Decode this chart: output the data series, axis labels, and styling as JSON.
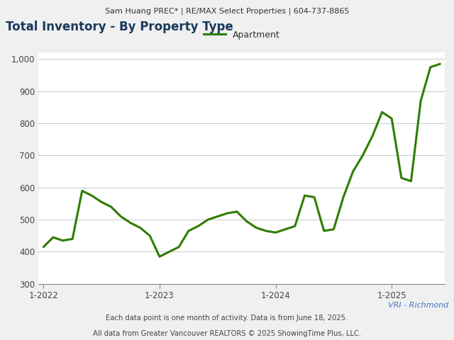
{
  "title": "Total Inventory - By Property Type",
  "header": "Sam Huang PREC* | RE/MAX Select Properties | 604-737-8865",
  "legend_label": "Apartment",
  "line_color": "#2e7d00",
  "line_width": 2.2,
  "footer1": "VRI - Richmond",
  "footer2": "Each data point is one month of activity. Data is from June 18, 2025.",
  "footer3": "All data from Greater Vancouver REALTORS © 2025 ShowingTime Plus, LLC.",
  "ylim": [
    300,
    1020
  ],
  "yticks": [
    300,
    400,
    500,
    600,
    700,
    800,
    900,
    1000
  ],
  "xtick_labels": [
    "1-2022",
    "1-2023",
    "1-2024",
    "1-2025"
  ],
  "background_color": "#f0f0f0",
  "plot_bg_color": "#ffffff",
  "values": [
    415,
    445,
    435,
    440,
    590,
    575,
    555,
    540,
    510,
    490,
    475,
    450,
    385,
    400,
    415,
    465,
    480,
    500,
    510,
    520,
    525,
    495,
    475,
    465,
    460,
    470,
    480,
    575,
    570,
    465,
    470,
    570,
    650,
    700,
    760,
    835,
    815,
    630,
    620,
    870,
    975,
    985
  ]
}
